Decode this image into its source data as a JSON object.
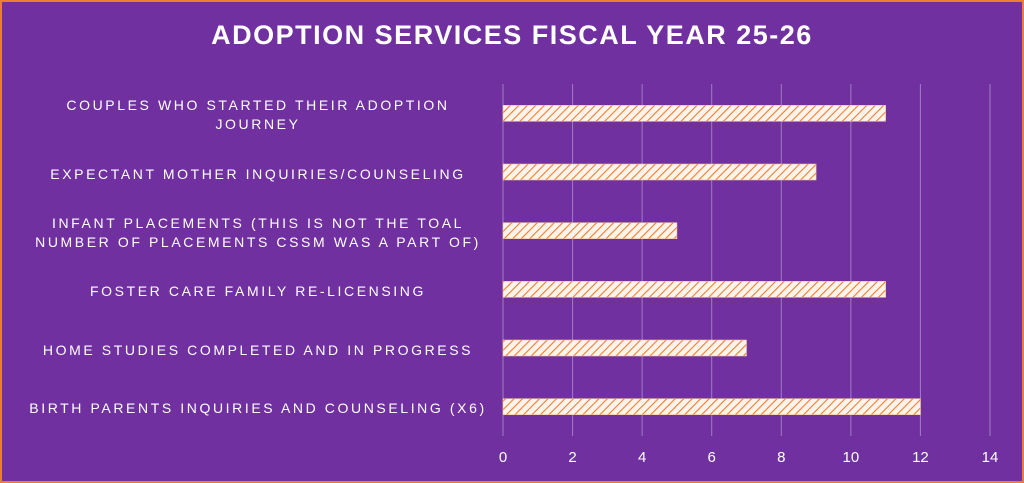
{
  "chart_data": {
    "type": "barh",
    "title": "ADOPTION SERVICES FISCAL YEAR 25-26",
    "categories": [
      "COUPLES WHO STARTED THEIR ADOPTION JOURNEY",
      "EXPECTANT MOTHER INQUIRIES/COUNSELING",
      "INFANT PLACEMENTS (THIS IS NOT THE TOAL NUMBER OF PLACEMENTS CSSM WAS A PART OF)",
      "FOSTER CARE FAMILY RE-LICENSING",
      "HOME STUDIES COMPLETED AND IN PROGRESS",
      "BIRTH PARENTS INQUIRIES AND COUNSELING (X6)"
    ],
    "values": [
      11,
      9,
      5,
      11,
      7,
      12
    ],
    "color": "#ed7d31",
    "xlim": [
      0,
      14
    ],
    "xticks": [
      0,
      2,
      4,
      6,
      8,
      10,
      12,
      14
    ],
    "grid": true
  }
}
